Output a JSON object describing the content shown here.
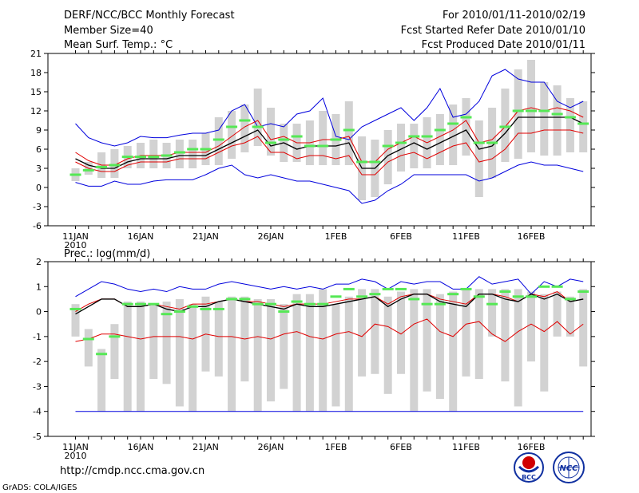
{
  "header": {
    "title": "DERF/NCC/BCC Monthly Forecast",
    "member_size": "Member Size=40",
    "variable": "Mean Surf. Temp.: °C",
    "forecast_period": "For 2010/01/11-2010/02/19",
    "started_refer_date": "Fcst Started Refer Date 2010/01/10",
    "produced_date": "Fcst Produced Date 2010/01/11"
  },
  "footer": {
    "url": "http://cmdp.ncc.cma.gov.cn",
    "credit": "GrADS: COLA/IGES"
  },
  "logos": {
    "left_text": "BCC",
    "right_text": "NCC"
  },
  "colors": {
    "box": "#d2d2d2",
    "mean": "#000000",
    "band": "#e00000",
    "extreme": "#0000dd",
    "obs": "#55e855"
  },
  "chart_data": [
    {
      "type": "box",
      "title": "Mean Surf. Temp.: °C",
      "ylabel": "Mean Surf. Temp.: °C",
      "ylim": [
        -6,
        21
      ],
      "yticks": [
        -6,
        -3,
        0,
        3,
        6,
        9,
        12,
        15,
        18,
        21
      ],
      "xlabels": [
        "11JAN",
        "16JAN",
        "21JAN",
        "26JAN",
        "1FEB",
        "6FEB",
        "11FEB",
        "16FEB"
      ],
      "xlabel_year": "2010",
      "days": 40,
      "box_low": [
        1.0,
        2.0,
        1.5,
        1.5,
        3.0,
        3.0,
        3.0,
        3.0,
        3.0,
        3.0,
        3.5,
        3.5,
        4.5,
        5.5,
        6.5,
        5.0,
        4.0,
        4.0,
        3.5,
        3.5,
        3.5,
        3.5,
        -2.0,
        -1.5,
        0.5,
        2.5,
        3.0,
        3.0,
        3.5,
        3.5,
        5.0,
        -1.5,
        1.5,
        4.0,
        4.5,
        5.5,
        5.0,
        5.0,
        5.5,
        5.5
      ],
      "box_high": [
        3.0,
        4.0,
        5.5,
        6.0,
        6.5,
        7.0,
        7.5,
        7.0,
        7.5,
        7.5,
        8.5,
        11.0,
        12.0,
        13.0,
        15.5,
        12.5,
        10.0,
        10.0,
        10.5,
        12.0,
        11.5,
        13.5,
        8.0,
        7.5,
        9.0,
        10.0,
        10.0,
        11.0,
        11.5,
        13.0,
        14.0,
        10.5,
        12.5,
        15.5,
        18.5,
        20.0,
        16.5,
        16.0,
        14.0,
        13.5
      ],
      "series": [
        {
          "name": "max",
          "color": "#0000dd",
          "values": [
            10.0,
            7.8,
            7.0,
            6.5,
            7.0,
            8.0,
            7.8,
            7.8,
            8.2,
            8.5,
            8.5,
            9.0,
            12.0,
            13.0,
            9.5,
            10.0,
            9.5,
            11.5,
            12.0,
            14.0,
            8.0,
            7.5,
            9.5,
            10.5,
            11.5,
            12.5,
            10.5,
            12.5,
            15.5,
            11.0,
            11.5,
            13.5,
            17.5,
            18.5,
            17.0,
            16.5,
            16.5,
            13.5,
            12.5,
            13.5
          ]
        },
        {
          "name": "upper",
          "color": "#e00000",
          "values": [
            5.5,
            4.2,
            3.5,
            3.5,
            4.5,
            5.0,
            5.0,
            5.0,
            5.5,
            5.5,
            5.5,
            6.5,
            8.0,
            9.5,
            10.5,
            7.5,
            8.0,
            7.0,
            7.0,
            7.5,
            7.5,
            8.0,
            4.0,
            4.0,
            6.0,
            7.0,
            8.0,
            7.0,
            8.0,
            9.0,
            10.5,
            7.0,
            7.5,
            9.5,
            12.0,
            12.5,
            12.0,
            12.5,
            12.0,
            11.0
          ]
        },
        {
          "name": "mean",
          "color": "#000000",
          "values": [
            4.5,
            3.5,
            3.0,
            3.0,
            4.0,
            4.5,
            4.5,
            4.5,
            5.0,
            5.0,
            5.0,
            6.0,
            7.0,
            8.0,
            9.0,
            6.5,
            7.0,
            6.0,
            6.5,
            6.5,
            6.5,
            7.0,
            3.0,
            3.0,
            5.0,
            6.0,
            7.0,
            6.0,
            7.0,
            8.0,
            9.0,
            6.0,
            6.5,
            8.5,
            11.0,
            11.0,
            11.0,
            11.0,
            11.0,
            10.0
          ]
        },
        {
          "name": "lower",
          "color": "#e00000",
          "values": [
            4.0,
            3.0,
            2.5,
            2.5,
            3.5,
            4.0,
            4.0,
            4.0,
            4.5,
            4.5,
            4.5,
            5.5,
            6.5,
            7.0,
            8.0,
            5.5,
            5.5,
            4.5,
            5.0,
            5.0,
            4.5,
            5.0,
            2.0,
            2.0,
            4.0,
            5.0,
            5.5,
            4.5,
            5.5,
            6.5,
            7.0,
            4.0,
            4.5,
            6.0,
            8.5,
            8.5,
            9.0,
            9.0,
            9.0,
            8.5
          ]
        },
        {
          "name": "min",
          "color": "#0000dd",
          "values": [
            0.8,
            0.2,
            0.2,
            1.0,
            0.5,
            0.5,
            1.0,
            1.2,
            1.2,
            1.2,
            2.0,
            3.0,
            3.5,
            2.0,
            1.5,
            2.0,
            1.5,
            1.0,
            1.0,
            0.5,
            0.0,
            -0.5,
            -2.5,
            -2.0,
            -0.5,
            0.5,
            2.0,
            2.0,
            2.0,
            2.0,
            2.0,
            1.0,
            1.5,
            2.5,
            3.5,
            4.0,
            3.5,
            3.5,
            3.0,
            2.5
          ]
        }
      ],
      "observed": [
        2.0,
        2.7,
        3.2,
        3.5,
        4.8,
        4.8,
        4.8,
        5.0,
        5.5,
        6.0,
        6.0,
        7.5,
        9.5,
        10.5,
        9.5,
        7.0,
        7.5,
        8.0,
        6.5,
        6.5,
        7.5,
        9.0,
        4.0,
        4.0,
        6.5,
        7.0,
        8.0,
        8.0,
        9.0,
        10.0,
        11.0,
        7.0,
        7.0,
        9.5,
        12.0,
        12.0,
        12.0,
        11.5,
        11.0,
        10.0
      ]
    },
    {
      "type": "box",
      "title": "Prec.: log(mm/d)",
      "ylabel": "Prec.: log(mm/d)",
      "ylim": [
        -5,
        2
      ],
      "yticks": [
        -5,
        -4,
        -3,
        -2,
        -1,
        0,
        1,
        2
      ],
      "xlabels": [
        "11JAN",
        "16JAN",
        "21JAN",
        "26JAN",
        "1FEB",
        "6FEB",
        "11FEB",
        "16FEB"
      ],
      "xlabel_year": "2010",
      "days": 40,
      "box_low": [
        -1.0,
        -2.2,
        -4.0,
        -2.7,
        -4.0,
        -4.0,
        -2.7,
        -2.9,
        -3.8,
        -4.0,
        -2.4,
        -2.6,
        -4.0,
        -2.8,
        -4.0,
        -3.6,
        -3.1,
        -4.0,
        -4.0,
        -4.0,
        -3.8,
        -4.0,
        -2.6,
        -2.5,
        -3.3,
        -2.5,
        -4.0,
        -3.2,
        -3.5,
        -4.0,
        -2.6,
        -2.7,
        -1.0,
        -2.8,
        -3.8,
        -2.0,
        -3.2,
        -1.0,
        -1.0,
        -2.2
      ],
      "box_high": [
        0.3,
        -0.7,
        -1.5,
        -0.5,
        0.4,
        0.4,
        0.3,
        0.4,
        0.5,
        0.3,
        0.6,
        0.4,
        0.6,
        0.6,
        0.5,
        0.5,
        0.3,
        0.7,
        0.7,
        0.9,
        0.3,
        0.6,
        0.9,
        0.9,
        0.6,
        0.8,
        0.9,
        0.9,
        0.7,
        0.8,
        0.9,
        0.9,
        0.9,
        0.9,
        0.9,
        0.8,
        0.7,
        0.8,
        0.6,
        0.9
      ],
      "series": [
        {
          "name": "max",
          "color": "#0000dd",
          "values": [
            0.6,
            0.9,
            1.2,
            1.1,
            0.9,
            0.8,
            0.9,
            0.8,
            1.0,
            0.9,
            0.9,
            1.1,
            1.2,
            1.1,
            1.0,
            0.9,
            1.0,
            0.9,
            1.0,
            0.9,
            1.1,
            1.1,
            1.3,
            1.2,
            0.9,
            1.2,
            1.1,
            1.2,
            1.2,
            0.9,
            0.9,
            1.4,
            1.1,
            1.2,
            1.3,
            0.7,
            1.2,
            1.0,
            1.3,
            1.2
          ]
        },
        {
          "name": "upper",
          "color": "#e00000",
          "values": [
            0.0,
            0.3,
            0.5,
            0.5,
            0.2,
            0.2,
            0.3,
            0.2,
            0.1,
            0.3,
            0.3,
            0.4,
            0.5,
            0.4,
            0.4,
            0.3,
            0.2,
            0.3,
            0.3,
            0.3,
            0.4,
            0.5,
            0.5,
            0.6,
            0.3,
            0.6,
            0.7,
            0.7,
            0.5,
            0.4,
            0.3,
            0.7,
            0.7,
            0.6,
            0.4,
            0.7,
            0.6,
            0.8,
            0.4,
            0.5
          ]
        },
        {
          "name": "mean",
          "color": "#000000",
          "values": [
            -0.1,
            0.2,
            0.5,
            0.5,
            0.2,
            0.2,
            0.3,
            0.1,
            0.0,
            0.2,
            0.2,
            0.4,
            0.5,
            0.4,
            0.3,
            0.2,
            0.1,
            0.3,
            0.2,
            0.2,
            0.3,
            0.4,
            0.5,
            0.6,
            0.2,
            0.5,
            0.7,
            0.7,
            0.4,
            0.3,
            0.2,
            0.7,
            0.7,
            0.5,
            0.4,
            0.7,
            0.5,
            0.7,
            0.4,
            0.5
          ]
        },
        {
          "name": "lower",
          "color": "#e00000",
          "values": [
            -1.2,
            -1.1,
            -0.9,
            -0.9,
            -1.0,
            -1.1,
            -1.0,
            -1.0,
            -1.0,
            -1.1,
            -0.9,
            -1.0,
            -1.0,
            -1.1,
            -1.0,
            -1.1,
            -0.9,
            -0.8,
            -1.0,
            -1.1,
            -0.9,
            -0.8,
            -1.0,
            -0.5,
            -0.6,
            -0.9,
            -0.5,
            -0.3,
            -0.8,
            -1.0,
            -0.5,
            -0.4,
            -0.9,
            -1.2,
            -0.8,
            -0.5,
            -0.8,
            -0.4,
            -0.9,
            -0.5
          ]
        },
        {
          "name": "min",
          "color": "#0000dd",
          "values": [
            -4.0,
            -4.0,
            -4.0,
            -4.0,
            -4.0,
            -4.0,
            -4.0,
            -4.0,
            -4.0,
            -4.0,
            -4.0,
            -4.0,
            -4.0,
            -4.0,
            -4.0,
            -4.0,
            -4.0,
            -4.0,
            -4.0,
            -4.0,
            -4.0,
            -4.0,
            -4.0,
            -4.0,
            -4.0,
            -4.0,
            -4.0,
            -4.0,
            -4.0,
            -4.0,
            -4.0,
            -4.0,
            -4.0,
            -4.0,
            -4.0,
            -4.0,
            -4.0,
            -4.0,
            -4.0,
            -4.0
          ]
        }
      ],
      "observed": [
        0.1,
        -1.1,
        -1.7,
        -1.0,
        0.3,
        0.3,
        0.3,
        -0.1,
        0.0,
        0.2,
        0.1,
        0.1,
        0.5,
        0.5,
        0.3,
        0.3,
        0.0,
        0.4,
        0.3,
        0.3,
        0.6,
        0.9,
        0.6,
        0.7,
        0.9,
        0.9,
        0.5,
        0.3,
        0.3,
        0.7,
        0.9,
        0.6,
        0.3,
        0.8,
        0.6,
        0.6,
        1.0,
        1.0,
        0.5,
        0.8
      ]
    }
  ]
}
